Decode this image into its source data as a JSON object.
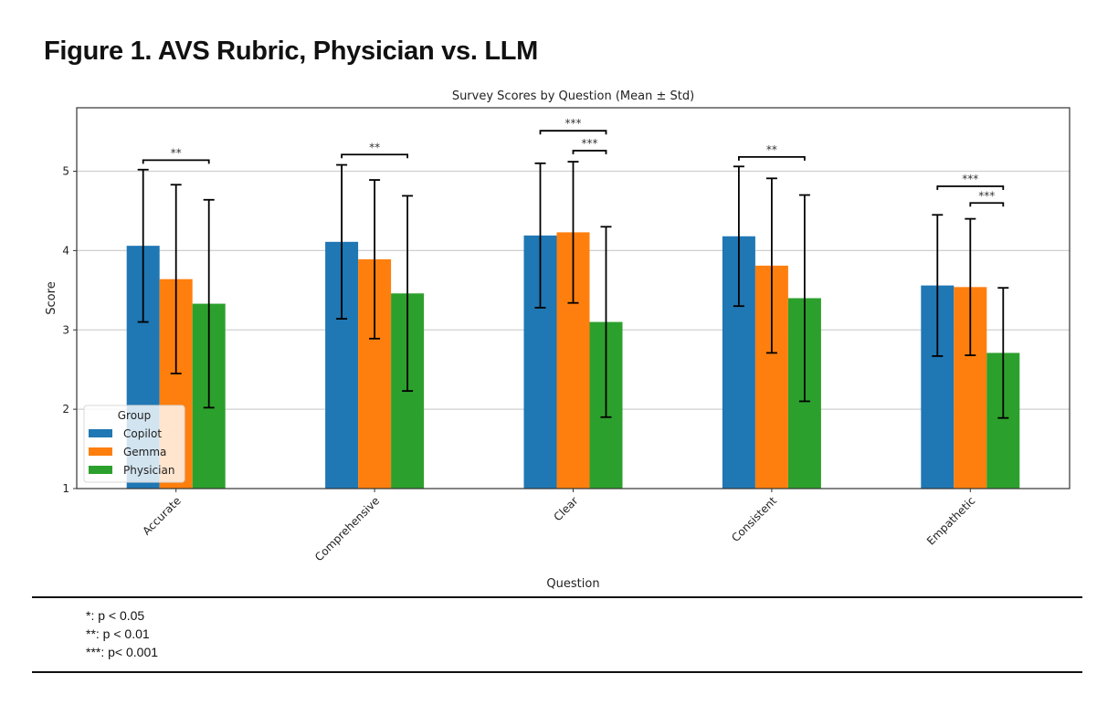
{
  "figure_title": "Figure 1. AVS Rubric, Physician vs. LLM",
  "chart_data": {
    "type": "bar",
    "title": "Survey Scores by Question (Mean ± Std)",
    "xlabel": "Question",
    "ylabel": "Score",
    "ylim": [
      1,
      5.8
    ],
    "yticks": [
      1,
      2,
      3,
      4,
      5
    ],
    "grid": "y",
    "categories": [
      "Accurate",
      "Comprehensive",
      "Clear",
      "Consistent",
      "Empathetic"
    ],
    "series": [
      {
        "name": "Copilot",
        "color": "#1f77b4",
        "values": [
          4.06,
          4.11,
          4.19,
          4.18,
          3.56
        ],
        "std": [
          0.96,
          0.97,
          0.91,
          0.88,
          0.89
        ]
      },
      {
        "name": "Gemma",
        "color": "#ff7f0e",
        "values": [
          3.64,
          3.89,
          4.23,
          3.81,
          3.54
        ],
        "std": [
          1.19,
          1.0,
          0.89,
          1.1,
          0.86
        ]
      },
      {
        "name": "Physician",
        "color": "#2ca02c",
        "values": [
          3.33,
          3.46,
          3.1,
          3.4,
          2.71
        ],
        "std": [
          1.31,
          1.23,
          1.2,
          1.3,
          0.82
        ]
      }
    ],
    "legend": {
      "title": "Group",
      "position": "lower-left"
    },
    "significance": [
      {
        "category": "Accurate",
        "from": "Copilot",
        "to": "Physician",
        "label": "**",
        "y": 5.14
      },
      {
        "category": "Comprehensive",
        "from": "Copilot",
        "to": "Physician",
        "label": "**",
        "y": 5.21
      },
      {
        "category": "Clear",
        "from": "Copilot",
        "to": "Physician",
        "label": "***",
        "y": 5.51
      },
      {
        "category": "Clear",
        "from": "Gemma",
        "to": "Physician",
        "label": "***",
        "y": 5.26
      },
      {
        "category": "Consistent",
        "from": "Copilot",
        "to": "Physician",
        "label": "**",
        "y": 5.18
      },
      {
        "category": "Empathetic",
        "from": "Copilot",
        "to": "Physician",
        "label": "***",
        "y": 4.81
      },
      {
        "category": "Empathetic",
        "from": "Gemma",
        "to": "Physician",
        "label": "***",
        "y": 4.6
      }
    ]
  },
  "footnotes": [
    "*: p < 0.05",
    "**: p < 0.01",
    "***: p< 0.001"
  ]
}
